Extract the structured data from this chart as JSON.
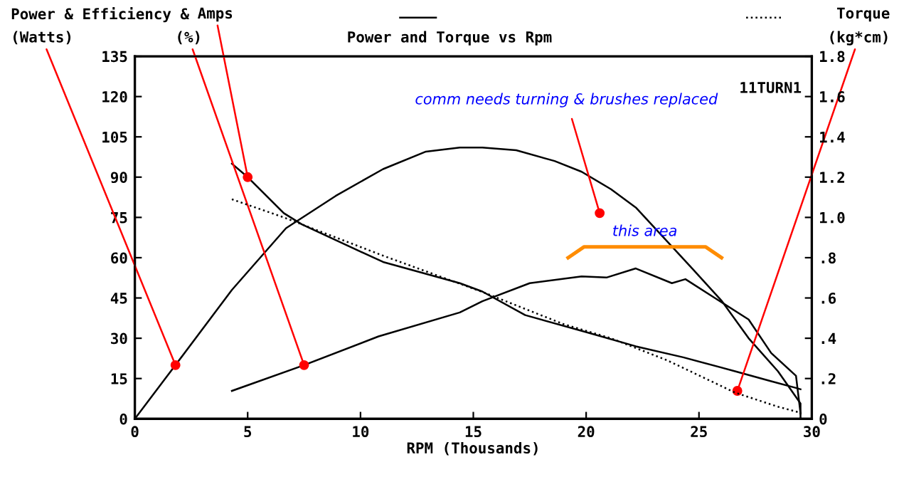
{
  "chart_data": {
    "type": "line",
    "title": "Power and Torque vs Rpm",
    "xlabel": "RPM (Thousands)",
    "ylabel": "Power & Efficiency & ",
    "y2label": "Torque",
    "xlim": [
      0,
      30
    ],
    "xticks": [
      0,
      5,
      10,
      15,
      20,
      25,
      30
    ],
    "ylim": [
      0,
      135
    ],
    "yticks": [
      0,
      15,
      30,
      45,
      60,
      75,
      90,
      105,
      120,
      135
    ],
    "y2lim": [
      0,
      1.8
    ],
    "y2ticks": [
      0,
      {
        "value": 0.2,
        "label": ".2"
      },
      {
        "value": 0.4,
        "label": ".4"
      },
      {
        "value": 0.6,
        "label": ".6"
      },
      {
        "value": 0.8,
        "label": ".8"
      },
      {
        "value": 1.0,
        "label": "1.0"
      },
      {
        "value": 1.2,
        "label": "1.2"
      },
      {
        "value": 1.4,
        "label": "1.4"
      },
      {
        "value": 1.6,
        "label": "1.6"
      },
      {
        "value": 1.8,
        "label": "1.8"
      }
    ],
    "grid": false,
    "legend": false,
    "marker": "none",
    "series": [
      {
        "color": "#000000",
        "line_style": "solid",
        "x": [
          0,
          1.8,
          4.3,
          6.7,
          8.9,
          11.0,
          12.9,
          14.4,
          15.4,
          16.9,
          18.6,
          19.8,
          21.1,
          22.2,
          23.6,
          24.7,
          26.0,
          27.2,
          28.5,
          29.5,
          29.5
        ],
        "values": [
          0,
          20,
          48,
          71,
          83,
          93,
          99.5,
          101,
          101,
          100,
          96,
          92,
          85.5,
          78.7,
          66,
          56,
          44,
          30,
          17.7,
          5.7,
          0
        ]
      },
      {
        "color": "#000000",
        "line_style": "solid",
        "x": [
          4.3,
          7.5,
          10.8,
          14.4,
          15.4,
          17.5,
          19.8,
          20.9,
          22.2,
          23.8,
          24.4,
          25.7,
          27.2,
          28.2,
          29.3,
          29.5
        ],
        "values": [
          10.4,
          20,
          30.7,
          39.6,
          43.8,
          50.5,
          53,
          52.6,
          56,
          50.5,
          52,
          45,
          37,
          24.5,
          16,
          2
        ]
      },
      {
        "color": "#000000",
        "line_style": "solid",
        "x": [
          4.3,
          5.0,
          6.6,
          7.4,
          11.0,
          14.4,
          15.4,
          17.3,
          20.0,
          22.2,
          24.3,
          26.6,
          28.2,
          29.3,
          29.5
        ],
        "values": [
          95,
          90,
          76.6,
          72.4,
          58.4,
          50.5,
          47.4,
          38.6,
          32.3,
          27,
          22.9,
          17.7,
          14,
          11.5,
          11
        ]
      },
      {
        "color": "#000000",
        "line_style": "dotted",
        "axis": "y2",
        "x": [
          4.3,
          6.6,
          11.0,
          15.4,
          19.0,
          21.1,
          23.6,
          26.6,
          28.5,
          29.5,
          29.5
        ],
        "values": [
          1.09,
          1.0,
          0.81,
          0.63,
          0.47,
          0.4,
          0.29,
          0.13,
          0.06,
          0.03,
          0
        ]
      },
      {
        "color": "#ff8c00",
        "line_style": "solid",
        "x": [
          19.2,
          19.9,
          25.3,
          26.0
        ],
        "values": [
          60,
          64,
          64,
          60
        ]
      }
    ],
    "annotations": [
      "11TURN1",
      {
        "text": "comm needs turning & brushes replaced",
        "x": 20.6,
        "y": 76.6
      },
      {
        "text": "(Watts)",
        "x": 1.8,
        "y": 20
      },
      {
        "text": "(%)",
        "x": 7.5,
        "y": 20
      },
      {
        "text": "Amps",
        "x": 5.0,
        "y": 90
      },
      {
        "text": "(kg*cm)",
        "x": 26.7,
        "y": 10.4
      },
      {
        "text": "this area",
        "x": 22.6,
        "y": 64
      }
    ]
  }
}
